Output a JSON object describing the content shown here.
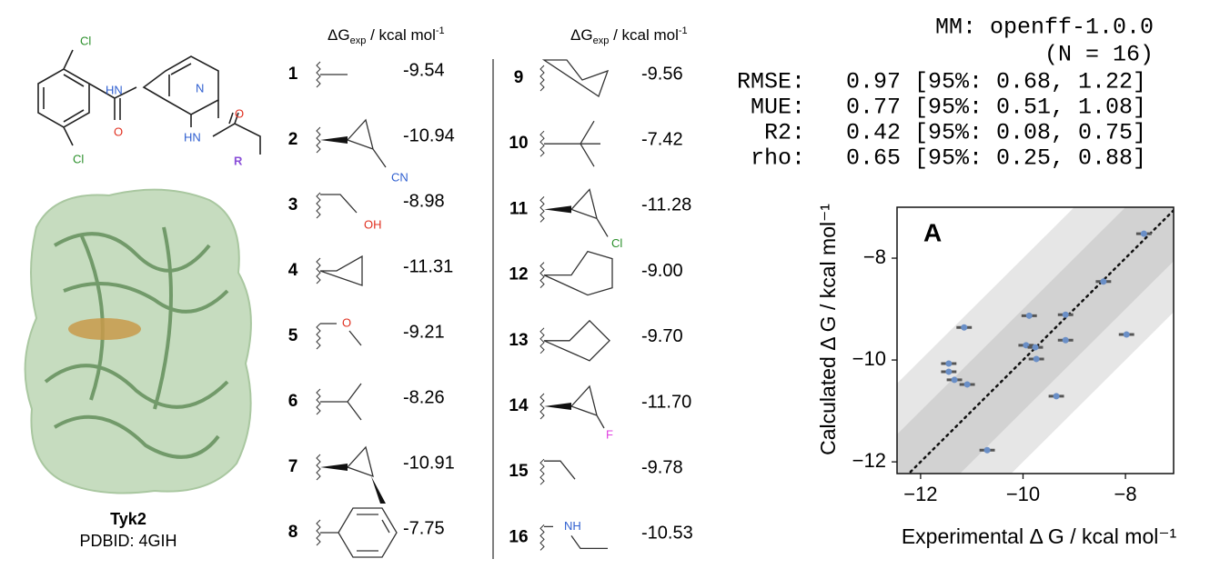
{
  "ligand": {
    "atoms": [
      "Cl",
      "HN",
      "N",
      "O",
      "HN",
      "O",
      "R",
      "Cl"
    ]
  },
  "protein": {
    "name": "Tyk2",
    "pdb": "PDBID: 4GIH"
  },
  "table": {
    "header": {
      "symbol": "ΔG",
      "subscript": "exp",
      "unit": " / kcal mol",
      "superscript": "-1"
    },
    "rows": [
      {
        "id": 1,
        "dg": "-9.54"
      },
      {
        "id": 2,
        "dg": "-10.94",
        "atom": "CN"
      },
      {
        "id": 3,
        "dg": "-8.98",
        "atom": "OH"
      },
      {
        "id": 4,
        "dg": "-11.31"
      },
      {
        "id": 5,
        "dg": "-9.21",
        "atom": "O"
      },
      {
        "id": 6,
        "dg": "-8.26"
      },
      {
        "id": 7,
        "dg": "-10.91"
      },
      {
        "id": 8,
        "dg": "-7.75"
      },
      {
        "id": 9,
        "dg": "-9.56"
      },
      {
        "id": 10,
        "dg": "-7.42"
      },
      {
        "id": 11,
        "dg": "-11.28",
        "atom": "Cl"
      },
      {
        "id": 12,
        "dg": "-9.00"
      },
      {
        "id": 13,
        "dg": "-9.70"
      },
      {
        "id": 14,
        "dg": "-11.70",
        "atom": "F"
      },
      {
        "id": 15,
        "dg": "-9.78"
      },
      {
        "id": 16,
        "dg": "-10.53",
        "atom": "NH"
      }
    ]
  },
  "stats": {
    "method": "MM: openff-1.0.0",
    "n": "(N = 16)",
    "rows": [
      {
        "name": "RMSE:",
        "text": "0.97 [95%: 0.68, 1.22]"
      },
      {
        "name": "MUE:",
        "text": "0.77 [95%: 0.51, 1.08]"
      },
      {
        "name": "R2:",
        "text": "0.42 [95%: 0.08, 0.75]"
      },
      {
        "name": "rho:",
        "text": "0.65 [95%: 0.25, 0.88]"
      }
    ]
  },
  "chart_data": {
    "type": "scatter",
    "panel_label": "A",
    "x_label": "Experimental Δ G / kcal mol⁻¹",
    "y_label": "Calculated Δ G / kcal mol⁻¹",
    "x": [
      -11.34,
      -11.45,
      -11.45,
      -11.09,
      -11.15,
      -10.7,
      -9.88,
      -9.94,
      -9.76,
      -9.74,
      -9.35,
      -9.17,
      -9.17,
      -8.43,
      -7.98,
      -7.64
    ],
    "y": [
      -10.39,
      -10.07,
      -10.23,
      -10.48,
      -9.36,
      -11.77,
      -9.13,
      -9.71,
      -9.75,
      -9.98,
      -10.71,
      -9.11,
      -9.61,
      -8.46,
      -9.5,
      -7.52
    ],
    "xerr": 0.15,
    "color": "#6a8fc7",
    "bands": [
      2,
      1
    ],
    "xlim": [
      -12.46,
      -7.06
    ],
    "ylim": [
      -12.23,
      -7.0
    ],
    "xticks": [
      {
        "value": -12,
        "label": "−12"
      },
      {
        "value": -10,
        "label": "−10"
      },
      {
        "value": -8,
        "label": "−8"
      }
    ],
    "yticks": [
      {
        "value": -12,
        "label": "−12"
      },
      {
        "value": -10,
        "label": "−10"
      },
      {
        "value": -8,
        "label": "−8"
      }
    ]
  }
}
